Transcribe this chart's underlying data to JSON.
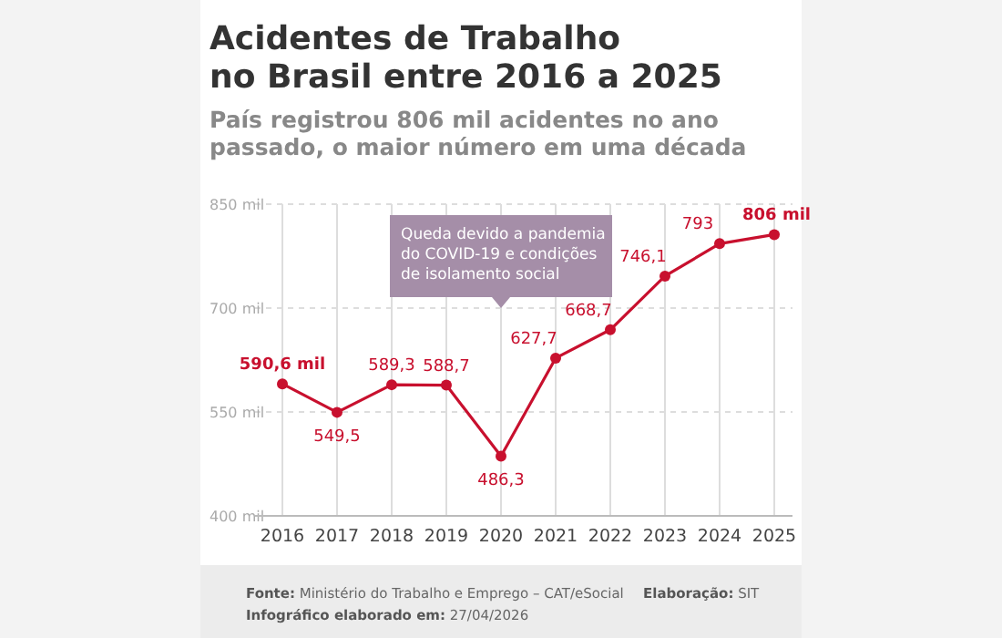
{
  "chart_data": {
    "type": "line",
    "title": "Acidentes de Trabalho\nno Brasil entre 2016 a 2025",
    "subtitle": "País registrou 806 mil acidentes no ano\npassado, o maior número em uma década",
    "categories": [
      "2016",
      "2017",
      "2018",
      "2019",
      "2020",
      "2021",
      "2022",
      "2023",
      "2024",
      "2025"
    ],
    "series": [
      {
        "color": "#c8102e",
        "values": [
          590.6,
          549.5,
          589.3,
          588.7,
          486.3,
          627.7,
          668.7,
          746.1,
          793,
          806
        ],
        "value_labels": [
          "590,6 mil",
          "549,5",
          "589,3",
          "588,7",
          "486,3",
          "627,7",
          "668,7",
          "746,1",
          "793",
          "806 mil"
        ]
      }
    ],
    "ylim": [
      400,
      850
    ],
    "yticks": [
      {
        "value": 400,
        "label": "400 mil"
      },
      {
        "value": 550,
        "label": "550 mil"
      },
      {
        "value": 700,
        "label": "700 mil"
      },
      {
        "value": 850,
        "label": "850 mil"
      }
    ],
    "grid": true,
    "marker": "circle",
    "line_style": "solid",
    "annotations": [
      "Queda devido a pandemia\ndo COVID-19 e condições\nde isolamento social",
      "Fonte: Ministério do Trabalho e Emprego – CAT/eSocial",
      "Elaboração: SIT",
      "Infográfico elaborado em: 27/04/2026"
    ]
  }
}
